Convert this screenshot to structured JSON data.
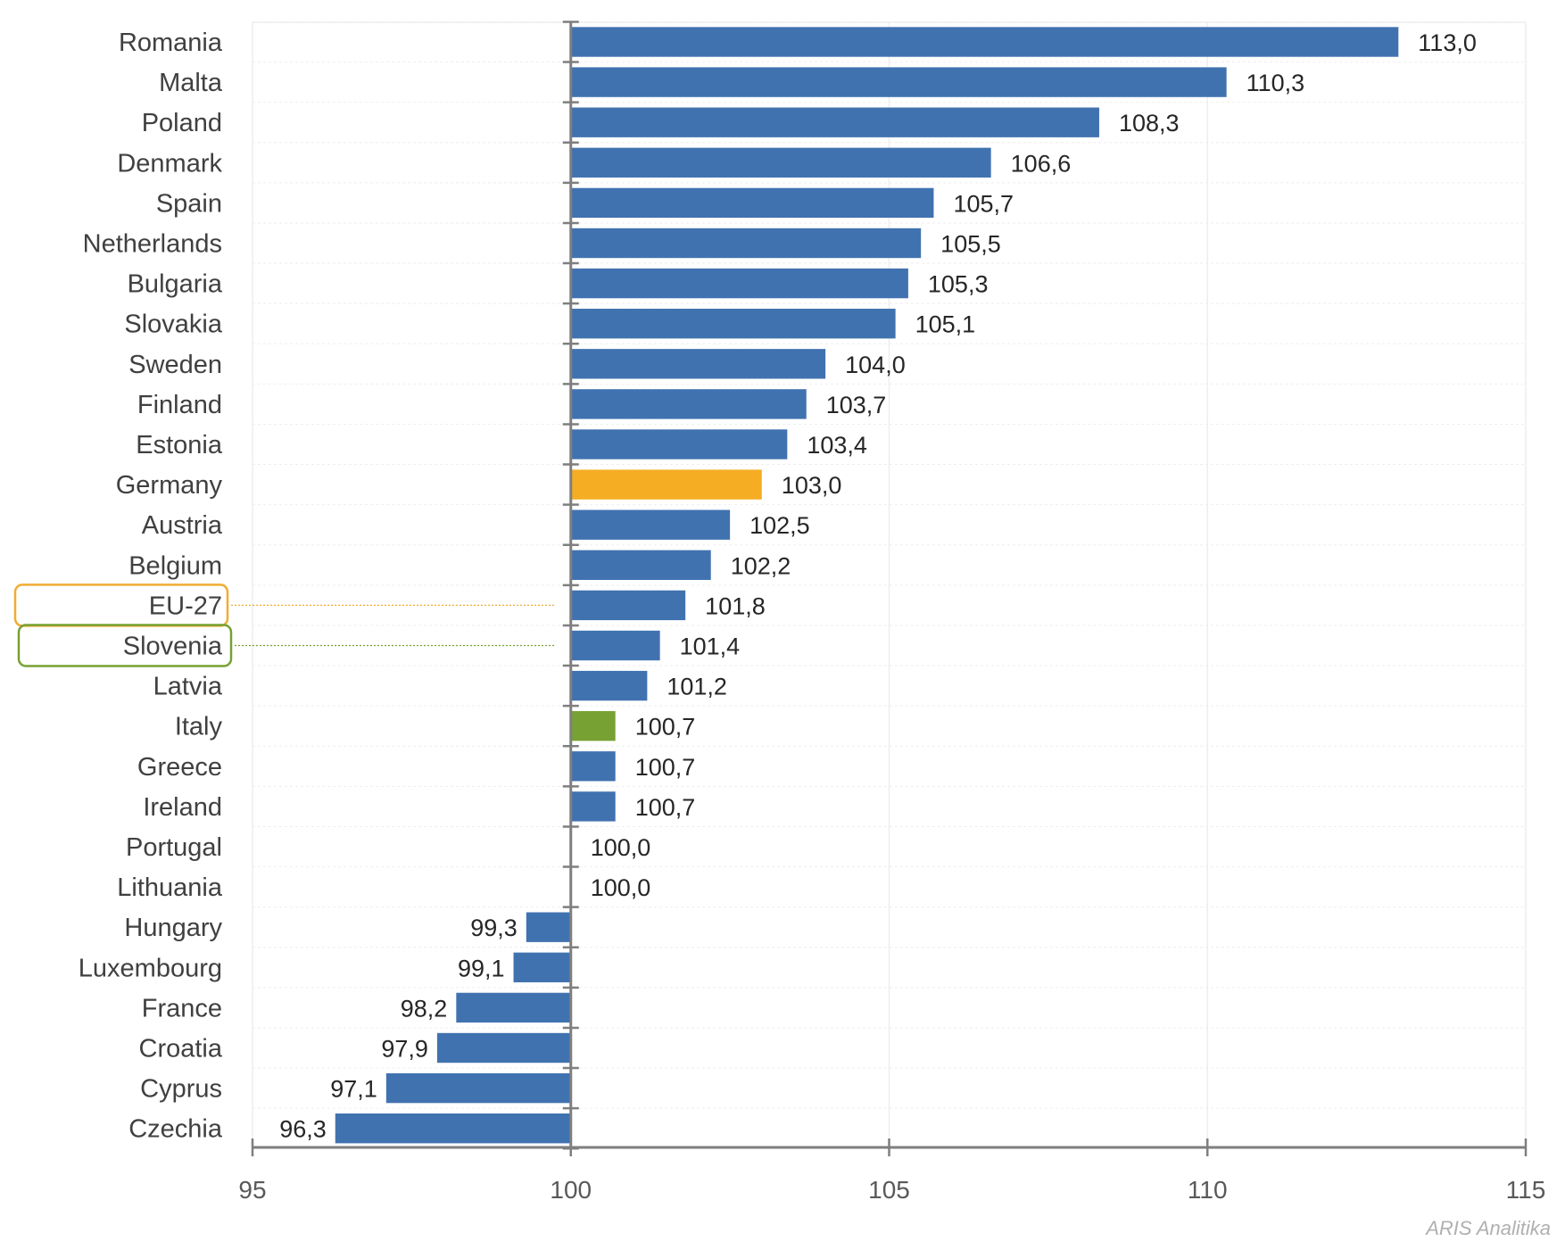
{
  "chart_data": {
    "type": "bar",
    "orientation": "horizontal",
    "title": "",
    "xlabel": "",
    "ylabel": "",
    "categories": [
      "Romania",
      "Malta",
      "Poland",
      "Denmark",
      "Spain",
      "Netherlands",
      "Bulgaria",
      "Slovakia",
      "Sweden",
      "Finland",
      "Estonia",
      "Germany",
      "Austria",
      "Belgium",
      "EU-27",
      "Slovenia",
      "Latvia",
      "Italy",
      "Greece",
      "Ireland",
      "Portugal",
      "Lithuania",
      "Hungary",
      "Luxembourg",
      "France",
      "Croatia",
      "Cyprus",
      "Czechia"
    ],
    "values": [
      113.0,
      110.3,
      108.3,
      106.6,
      105.7,
      105.5,
      105.3,
      105.1,
      104.0,
      103.7,
      103.4,
      103.0,
      102.5,
      102.2,
      101.8,
      101.4,
      101.2,
      100.7,
      100.7,
      100.7,
      100.0,
      100.0,
      99.3,
      99.1,
      98.2,
      97.9,
      97.1,
      96.3
    ],
    "value_labels": [
      "113,0",
      "110,3",
      "108,3",
      "106,6",
      "105,7",
      "105,5",
      "105,3",
      "105,1",
      "104,0",
      "103,7",
      "103,4",
      "103,0",
      "102,5",
      "102,2",
      "101,8",
      "101,4",
      "101,2",
      "100,7",
      "100,7",
      "100,7",
      "100,0",
      "100,0",
      "99,3",
      "99,1",
      "98,2",
      "97,9",
      "97,1",
      "96,3"
    ],
    "baseline": 100,
    "xlim": [
      95,
      115
    ],
    "xticks": [
      "95",
      "100",
      "105",
      "110",
      "115"
    ],
    "grid": true,
    "colors": {
      "default": "#4172b0",
      "highlight_orange": "#f5ad24",
      "highlight_green": "#77a132"
    },
    "bar_highlights": {
      "Germany": "highlight_orange",
      "Italy": "highlight_green"
    },
    "label_highlights": {
      "EU-27": "#f0ac32",
      "Slovenia": "#77a132"
    }
  },
  "watermark": "ARIS Analitika"
}
